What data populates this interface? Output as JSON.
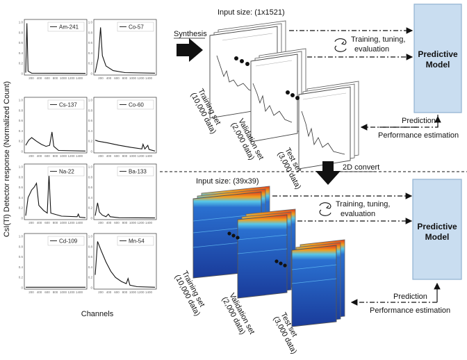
{
  "left_panel": {
    "ylabel": "CsI(Tl) Detector response (Normalized Count)",
    "xlabel": "Channels",
    "x_ticks": [
      "200",
      "400",
      "600",
      "800",
      "1000",
      "1200",
      "1400"
    ],
    "y_ticks": [
      "0",
      "0.2",
      "0.4",
      "0.6",
      "0.8",
      "1.0"
    ],
    "plots": [
      {
        "legend": "Am-241"
      },
      {
        "legend": "Co-57"
      },
      {
        "legend": "Cs-137"
      },
      {
        "legend": "Co-60"
      },
      {
        "legend": "Na-22"
      },
      {
        "legend": "Ba-133"
      },
      {
        "legend": "Cd-109"
      },
      {
        "legend": "Mn-54"
      }
    ]
  },
  "top_pipeline": {
    "synthesis_label": "Synthesis",
    "input_size": "Input size: (1x1521)",
    "sets": [
      {
        "name": "Training set",
        "count": "(10,000 data)"
      },
      {
        "name": "Validation set",
        "count": "(2,000 data)"
      },
      {
        "name": "Test set",
        "count": "(3,000 data)"
      }
    ],
    "training_label": "Training, tuning, evaluation",
    "model_label": "Predictive Model",
    "prediction_label": "Prediction",
    "performance_label": "Performance estimation"
  },
  "convert_label": "2D convert",
  "bottom_pipeline": {
    "input_size": "Input size: (39x39)",
    "sets": [
      {
        "name": "Training set",
        "count": "(10,000 data)"
      },
      {
        "name": "Validation set",
        "count": "(2,000 data)"
      },
      {
        "name": "Test set",
        "count": "(3,000 data)"
      }
    ],
    "training_label": "Training, tuning, evaluation",
    "model_label": "Predictive Model",
    "prediction_label": "Prediction",
    "performance_label": "Performance estimation"
  },
  "colors": {
    "model_fill": "#c9ddf0",
    "model_stroke": "#8fb0d0",
    "heat_low": "#1a3f9a",
    "heat_high": "#d8361c"
  }
}
